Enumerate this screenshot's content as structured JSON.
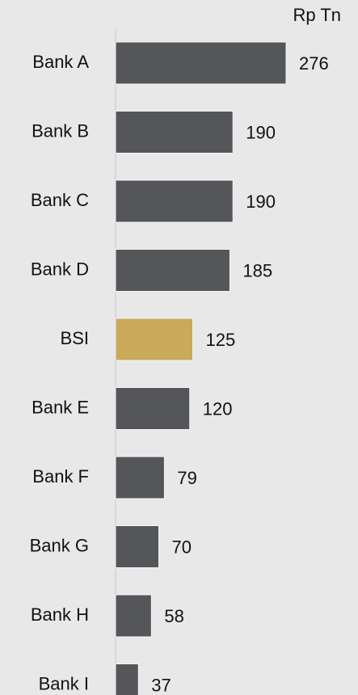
{
  "chart_data": {
    "type": "barh",
    "unit_label": "Rp Tn",
    "categories": [
      "Bank A",
      "Bank B",
      "Bank C",
      "Bank D",
      "BSI",
      "Bank E",
      "Bank F",
      "Bank G",
      "Bank H",
      "Bank I"
    ],
    "values": [
      276,
      190,
      190,
      185,
      125,
      120,
      79,
      70,
      58,
      37
    ],
    "colors": [
      "#55565a",
      "#55565a",
      "#55565a",
      "#55565a",
      "#c9a95a",
      "#55565a",
      "#55565a",
      "#55565a",
      "#55565a",
      "#55565a"
    ]
  }
}
